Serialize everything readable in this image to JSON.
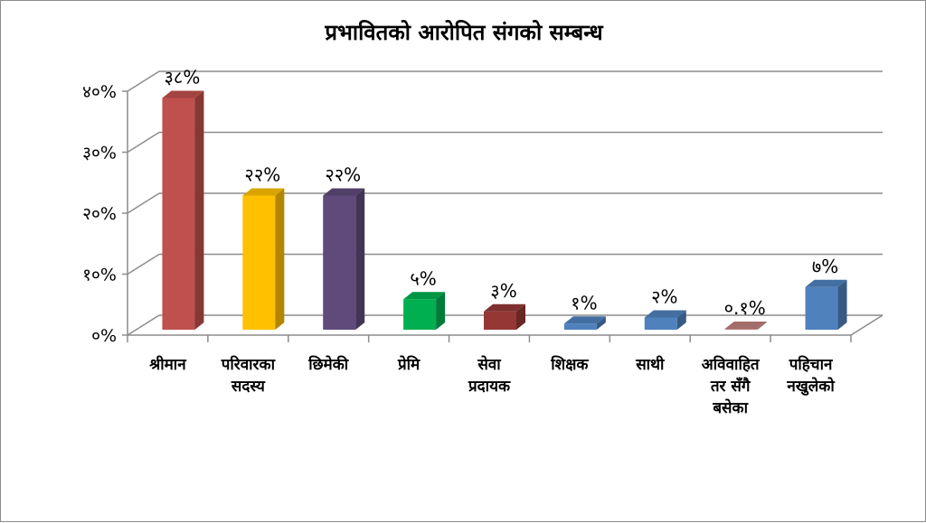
{
  "chart_data": {
    "type": "bar",
    "title": "प्रभावितको आरोपित संगको सम्बन्ध",
    "categories": [
      [
        "श्रीमान"
      ],
      [
        "परिवारका",
        "सदस्य"
      ],
      [
        "छिमेकी"
      ],
      [
        "प्रेमि"
      ],
      [
        "सेवा",
        "प्रदायक"
      ],
      [
        "शिक्षक"
      ],
      [
        "साथी"
      ],
      [
        "अविवाहित",
        "तर सँगै",
        "बसेका"
      ],
      [
        "पहिचान",
        "नखुलेको"
      ]
    ],
    "values": [
      38,
      22,
      22,
      5,
      3,
      1,
      2,
      0.1,
      7
    ],
    "data_labels": [
      "३८%",
      "२२%",
      "२२%",
      "५%",
      "३%",
      "१%",
      "२%",
      "०.१%",
      "७%"
    ],
    "colors": [
      "#c0504d",
      "#ffc000",
      "#604a7b",
      "#00b050",
      "#953735",
      "#4f81bd",
      "#4f81bd",
      "#c0807d",
      "#4f81bd"
    ],
    "y_ticks": [
      0,
      10,
      20,
      30,
      40
    ],
    "y_tick_labels": [
      "०%",
      "१०%",
      "२०%",
      "३०%",
      "४०%"
    ],
    "ylim": [
      0,
      40
    ],
    "grid": true,
    "xlabel": "",
    "ylabel": ""
  }
}
